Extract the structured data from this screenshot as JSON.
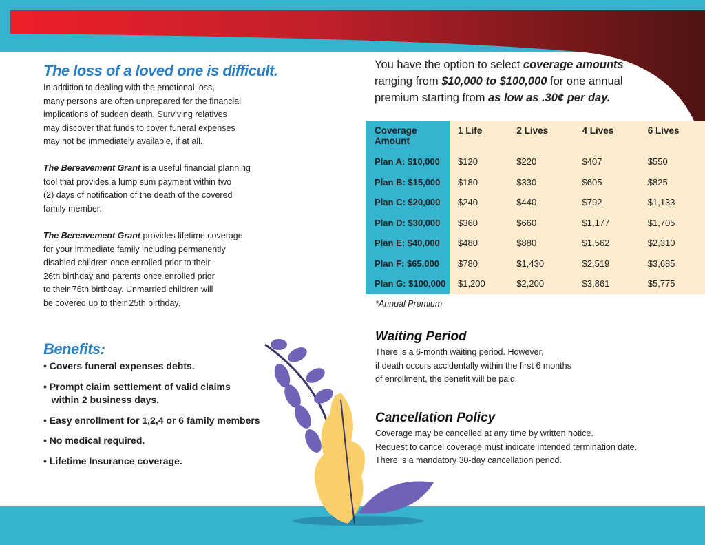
{
  "left": {
    "heading": "The loss of a loved one is difficult.",
    "intro_lines": [
      "In addition to dealing with the emotional loss,",
      "many persons are often unprepared for the financial",
      "implications of sudden death. Surviving relatives",
      "may discover that funds to cover funeral expenses",
      "may not be immediately available, if at all."
    ],
    "grant_name": "The Bereavement Grant",
    "para2_lines": [
      " is a useful financial planning",
      "tool that provides a lump sum payment within two",
      "(2) days of notification of the death of the covered",
      "family member."
    ],
    "para3_lines": [
      " provides lifetime coverage",
      "for your immediate family including permanently",
      "disabled children once enrolled prior to their",
      "26th birthday and parents once enrolled prior",
      "to their 76th birthday. Unmarried children will",
      "be covered up to their 25th birthday."
    ],
    "benefits_heading": "Benefits:",
    "benefits": [
      "• Covers funeral expenses debts.",
      "• Prompt claim settlement of valid claims",
      "   within 2 business days.",
      "• Easy enrollment for 1,2,4 or 6 family members",
      "• No medical required.",
      "• Lifetime Insurance coverage."
    ]
  },
  "right": {
    "intro": {
      "t1": "You have the option to select ",
      "b1": "coverage amounts",
      "t2": "ranging from ",
      "b2": "$10,000 to $100,000",
      "t3": " for one annual",
      "t4": "premium starting from ",
      "b3": "as low as .30¢ per day."
    },
    "table": {
      "headers": [
        "Coverage Amount",
        "1 Life",
        "2 Lives",
        "4 Lives",
        "6 Lives"
      ],
      "rows": [
        [
          "Plan A: $10,000",
          "$120",
          "$220",
          "$407",
          "$550"
        ],
        [
          "Plan B: $15,000",
          "$180",
          "$330",
          "$605",
          "$825"
        ],
        [
          "Plan C: $20,000",
          "$240",
          "$440",
          "$792",
          "$1,133"
        ],
        [
          "Plan D: $30,000",
          "$360",
          "$660",
          "$1,177",
          "$1,705"
        ],
        [
          "Plan E: $40,000",
          "$480",
          "$880",
          "$1,562",
          "$2,310"
        ],
        [
          "Plan F: $65,000",
          "$780",
          "$1,430",
          "$2,519",
          "$3,685"
        ],
        [
          "Plan G: $100,000",
          "$1,200",
          "$2,200",
          "$3,861",
          "$5,775"
        ]
      ],
      "note": "*Annual Premium"
    },
    "waiting": {
      "heading": "Waiting Period",
      "lines": [
        "There is a 6-month waiting period. However,",
        "if death occurs accidentally within the first 6 months",
        "of enrollment, the benefit will be paid."
      ]
    },
    "cancel": {
      "heading": "Cancellation Policy",
      "lines": [
        "Coverage may be cancelled at any time by written notice.",
        "Request to cancel coverage must indicate intended termination date.",
        "There is a mandatory 30-day cancellation period."
      ]
    }
  },
  "colors": {
    "cyan": "#36b3cf",
    "red": "#e8202a",
    "darkred": "#4e1414",
    "blue": "#2b80c4",
    "cream": "#fdecce"
  }
}
